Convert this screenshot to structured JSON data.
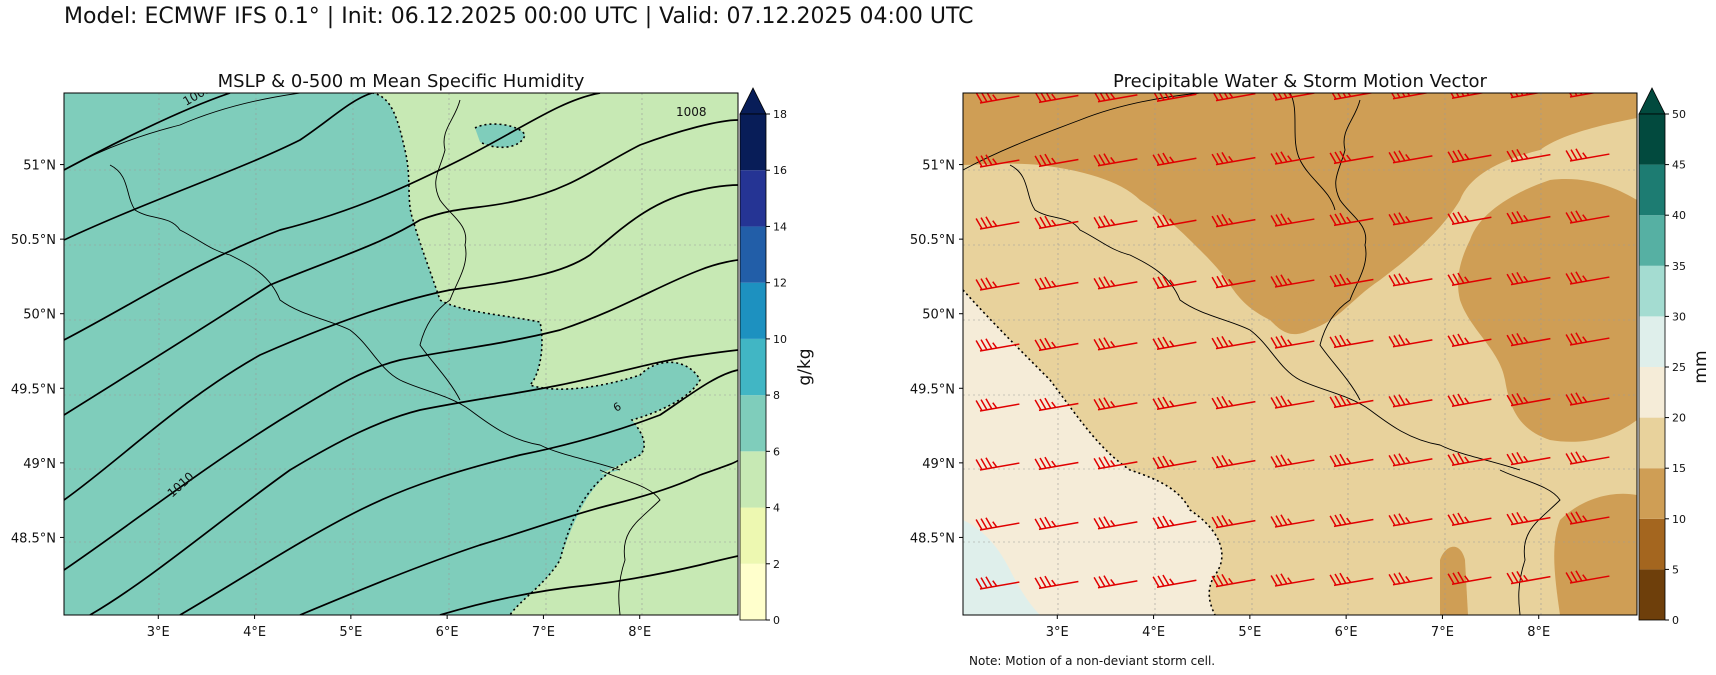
{
  "header": {
    "title": "Model: ECMWF IFS 0.1° | Init: 06.12.2025 00:00 UTC | Valid: 07.12.2025 04:00 UTC"
  },
  "panels": {
    "left": {
      "title": "MSLP & 0-500 m Mean Specific Humidity",
      "colorbar_label": "g/kg",
      "colorbar_ticks": [
        "0",
        "2",
        "4",
        "6",
        "8",
        "10",
        "12",
        "14",
        "16",
        "18"
      ],
      "colorbar_colors": [
        "#ffffcc",
        "#edf8b1",
        "#c7e9b4",
        "#7fcdbb",
        "#41b6c4",
        "#1d91c0",
        "#225ea8",
        "#253494",
        "#081d58"
      ],
      "colorbar_extend_color": "#081d58",
      "contour_labels": [
        "1005",
        "1008",
        "1010",
        "6"
      ]
    },
    "right": {
      "title": "Precipitable Water & Storm Motion Vector",
      "colorbar_label": "mm",
      "colorbar_ticks": [
        "0",
        "5",
        "10",
        "15",
        "20",
        "25",
        "30",
        "35",
        "40",
        "45",
        "50"
      ],
      "colorbar_colors": [
        "#6e3f0b",
        "#a4661f",
        "#cf9e55",
        "#e8d29c",
        "#f5ecd8",
        "#dfefeb",
        "#a4dcd1",
        "#56b0a3",
        "#1d7c72",
        "#024a3e"
      ],
      "colorbar_extend_color": "#024a3e",
      "barb_color": "#e00000"
    }
  },
  "axes": {
    "lat_labels": [
      "51°N",
      "50.5°N",
      "50°N",
      "49.5°N",
      "49°N",
      "48.5°N"
    ],
    "lon_labels": [
      "3°E",
      "4°E",
      "5°E",
      "6°E",
      "7°E",
      "8°E"
    ],
    "lon_range": [
      2,
      9
    ],
    "lat_range": [
      48,
      51.5
    ]
  },
  "note": "Note: Motion of a non-deviant storm cell."
}
